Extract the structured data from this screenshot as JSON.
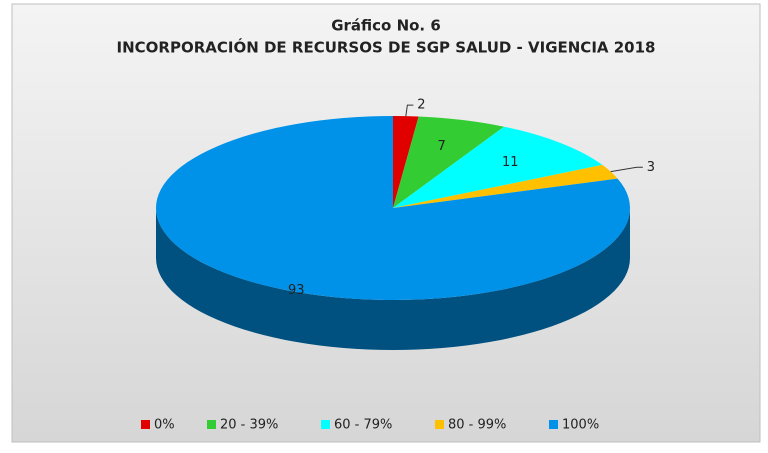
{
  "chart_data": {
    "type": "pie3d",
    "title": "Gráfico No. 6",
    "subtitle": "INCORPORACIÓN DE RECURSOS DE SGP SALUD - VIGENCIA 2018",
    "categories": [
      "0%",
      "20 - 39%",
      "60 - 79%",
      "80 - 99%",
      "100%"
    ],
    "values": [
      2,
      7,
      11,
      3,
      93
    ],
    "colors": [
      "#e00000",
      "#33cc33",
      "#00ffff",
      "#ffc000",
      "#0092e8"
    ],
    "legend": "bottom"
  }
}
